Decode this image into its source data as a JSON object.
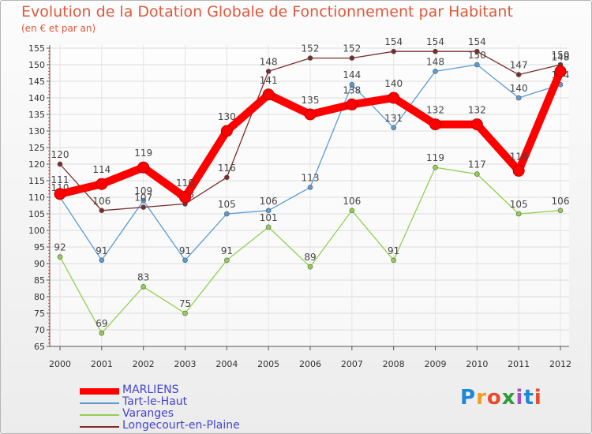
{
  "header": {
    "title": "Evolution de la Dotation Globale de Fonctionnement par Habitant",
    "subtitle": "(en € et par an)"
  },
  "logo": {
    "text": "Proxiti",
    "colors": [
      "#1e88d6",
      "#f39c1f",
      "#e84a2a",
      "#2e9c3b",
      "#a352b8",
      "#1e88d6",
      "#e84a2a"
    ]
  },
  "chart_data": {
    "type": "line",
    "x": [
      "2000",
      "2001",
      "2002",
      "2003",
      "2004",
      "2005",
      "2006",
      "2007",
      "2008",
      "2009",
      "2010",
      "2011",
      "2012"
    ],
    "ylim": [
      65,
      155
    ],
    "yticks": [
      65,
      70,
      75,
      80,
      85,
      90,
      95,
      100,
      105,
      110,
      115,
      120,
      125,
      130,
      135,
      140,
      145,
      150,
      155
    ],
    "grid": true,
    "legend_position": "bottom-left",
    "series": [
      {
        "name": "MARLIENS",
        "color": "#ff0000",
        "values": [
          111,
          114,
          119,
          110,
          130,
          141,
          135,
          138,
          140,
          132,
          132,
          118,
          148
        ]
      },
      {
        "name": "Tart-le-Haut",
        "color": "#5b9bd5",
        "values": [
          110,
          91,
          109,
          91,
          105,
          106,
          113,
          144,
          131,
          148,
          150,
          140,
          144
        ]
      },
      {
        "name": "Varanges",
        "color": "#92d050",
        "values": [
          92,
          69,
          83,
          75,
          91,
          101,
          89,
          106,
          91,
          119,
          117,
          105,
          106
        ]
      },
      {
        "name": "Longecourt-en-Plaine",
        "color": "#7b2c2c",
        "values": [
          120,
          106,
          107,
          108,
          116,
          148,
          152,
          152,
          154,
          154,
          154,
          147,
          150
        ]
      }
    ]
  }
}
